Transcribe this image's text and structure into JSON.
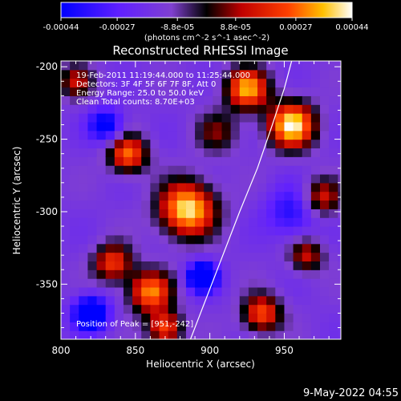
{
  "chart_data": {
    "type": "heatmap",
    "title": "Reconstructed RHESSI Image",
    "xlabel": "Heliocentric X (arcsec)",
    "ylabel": "Heliocentric Y (arcsec)",
    "xlim": [
      800,
      988
    ],
    "ylim": [
      -388,
      -196
    ],
    "x_ticks": [
      800,
      850,
      900,
      950
    ],
    "y_ticks": [
      -200,
      -250,
      -300,
      -350
    ],
    "colorbar": {
      "min": -0.00044,
      "max": 0.00044,
      "ticks": [
        "-0.00044",
        "-0.00027",
        "-8.8e-05",
        "8.8e-05",
        "0.00027",
        "0.00044"
      ],
      "unit_label": "(photons cm^-2 s^-1 asec^-2)",
      "stops": [
        "#0000ff",
        "#6020ff",
        "#8040d0",
        "#000000",
        "#c00000",
        "#ff4000",
        "#ffc000",
        "#ffffff"
      ]
    },
    "annotations": [
      "19-Feb-2011 11:19:44.000 to 11:25:44.000",
      "Detectors: 3F 4F 5F 6F 7F 8F, Att 0",
      "Energy Range: 25.0 to 50.0 keV",
      "Clean    Total counts: 8.70E+03"
    ],
    "position_of_peak": "Position of Peak = [951,-242]",
    "limb_curve": {
      "x": [
        887,
        905,
        920,
        932,
        942,
        950,
        955
      ],
      "y": [
        -388,
        -340,
        -300,
        -270,
        -240,
        -215,
        -196
      ]
    },
    "sources": [
      {
        "x": 845,
        "y": -260,
        "intensity": 0.75,
        "sigma": 9
      },
      {
        "x": 925,
        "y": -215,
        "intensity": 0.85,
        "sigma": 10
      },
      {
        "x": 955,
        "y": -240,
        "intensity": 1.0,
        "sigma": 11
      },
      {
        "x": 885,
        "y": -298,
        "intensity": 1.0,
        "sigma": 13
      },
      {
        "x": 860,
        "y": -355,
        "intensity": 0.8,
        "sigma": 10
      },
      {
        "x": 835,
        "y": -335,
        "intensity": 0.65,
        "sigma": 9
      },
      {
        "x": 870,
        "y": -380,
        "intensity": 0.7,
        "sigma": 8
      },
      {
        "x": 935,
        "y": -370,
        "intensity": 0.7,
        "sigma": 9
      },
      {
        "x": 965,
        "y": -330,
        "intensity": 0.5,
        "sigma": 8
      },
      {
        "x": 975,
        "y": -290,
        "intensity": 0.55,
        "sigma": 9
      },
      {
        "x": 810,
        "y": -210,
        "intensity": 0.45,
        "sigma": 8
      },
      {
        "x": 905,
        "y": -245,
        "intensity": 0.35,
        "sigma": 10
      },
      {
        "x": 820,
        "y": -370,
        "intensity": -0.9,
        "sigma": 8
      },
      {
        "x": 895,
        "y": -345,
        "intensity": -0.95,
        "sigma": 7
      },
      {
        "x": 830,
        "y": -240,
        "intensity": -0.6,
        "sigma": 8
      },
      {
        "x": 955,
        "y": -300,
        "intensity": -0.4,
        "sigma": 12
      }
    ]
  },
  "footer": {
    "date": "9-May-2022 04:55"
  }
}
